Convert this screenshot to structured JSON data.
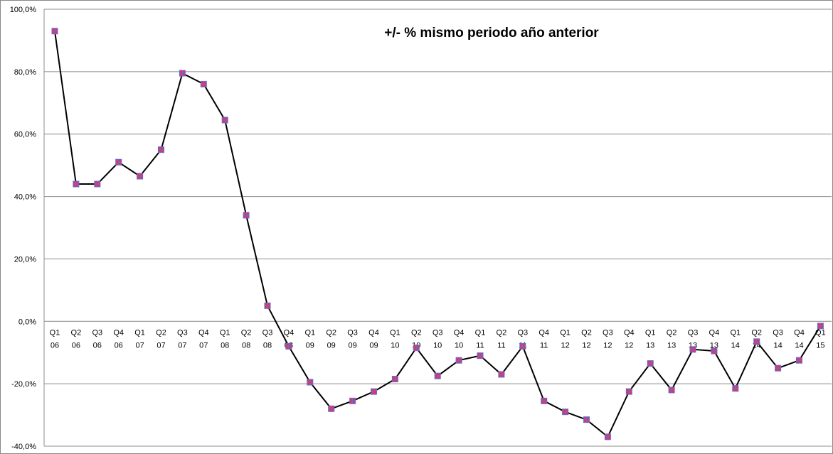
{
  "chart_data": {
    "type": "line",
    "title": "+/- % mismo periodo año anterior",
    "categories": [
      [
        "Q1",
        "06"
      ],
      [
        "Q2",
        "06"
      ],
      [
        "Q3",
        "06"
      ],
      [
        "Q4",
        "06"
      ],
      [
        "Q1",
        "07"
      ],
      [
        "Q2",
        "07"
      ],
      [
        "Q3",
        "07"
      ],
      [
        "Q4",
        "07"
      ],
      [
        "Q1",
        "08"
      ],
      [
        "Q2",
        "08"
      ],
      [
        "Q3",
        "08"
      ],
      [
        "Q4",
        "08"
      ],
      [
        "Q1",
        "09"
      ],
      [
        "Q2",
        "09"
      ],
      [
        "Q3",
        "09"
      ],
      [
        "Q4",
        "09"
      ],
      [
        "Q1",
        "10"
      ],
      [
        "Q2",
        "10"
      ],
      [
        "Q3",
        "10"
      ],
      [
        "Q4",
        "10"
      ],
      [
        "Q1",
        "11"
      ],
      [
        "Q2",
        "11"
      ],
      [
        "Q3",
        "11"
      ],
      [
        "Q4",
        "11"
      ],
      [
        "Q1",
        "12"
      ],
      [
        "Q2",
        "12"
      ],
      [
        "Q3",
        "12"
      ],
      [
        "Q4",
        "12"
      ],
      [
        "Q1",
        "13"
      ],
      [
        "Q2",
        "13"
      ],
      [
        "Q3",
        "13"
      ],
      [
        "Q4",
        "13"
      ],
      [
        "Q1",
        "14"
      ],
      [
        "Q2",
        "14"
      ],
      [
        "Q3",
        "14"
      ],
      [
        "Q4",
        "14"
      ],
      [
        "Q1",
        "15"
      ]
    ],
    "values": [
      93.0,
      44.0,
      44.0,
      51.0,
      46.5,
      55.0,
      79.5,
      76.0,
      64.5,
      34.0,
      5.0,
      -8.0,
      -19.5,
      -28.0,
      -25.5,
      -22.5,
      -18.5,
      -8.5,
      -17.5,
      -12.5,
      -11.0,
      -17.0,
      -8.0,
      -25.5,
      -29.0,
      -31.5,
      -37.0,
      -22.5,
      -13.5,
      -22.0,
      -9.0,
      -9.5,
      -21.5,
      -6.5,
      -15.0,
      -12.5,
      -1.5
    ],
    "ylim": [
      -40,
      100
    ],
    "yticks": [
      100,
      80,
      60,
      40,
      20,
      0,
      -20,
      -40
    ],
    "ytick_labels": [
      "100,0%",
      "80,0%",
      "60,0%",
      "40,0%",
      "20,0%",
      "0,0%",
      "-20,0%",
      "-40,0%"
    ],
    "grid": true,
    "line_color": "#000000",
    "marker_fill": "#e8325a",
    "marker_edge": "#5b6fd6",
    "grid_color": "#8c8c8c"
  }
}
